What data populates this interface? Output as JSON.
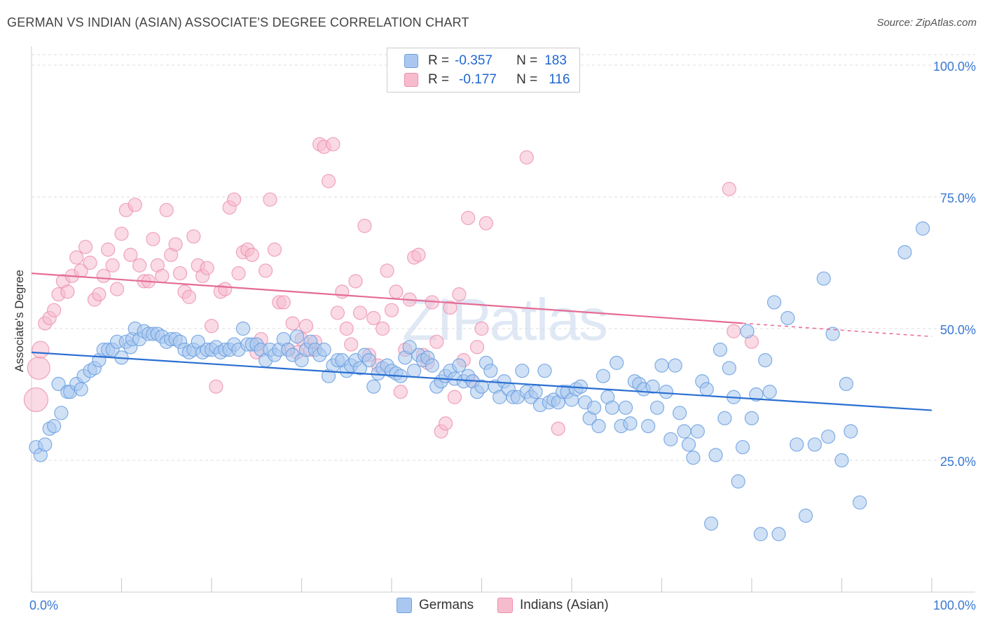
{
  "title": "GERMAN VS INDIAN (ASIAN) ASSOCIATE'S DEGREE CORRELATION CHART",
  "source": "Source: ZipAtlas.com",
  "watermark": "ZIPatlas",
  "legend": {
    "rows": [
      {
        "r_label": "R =",
        "r_value": "-0.357",
        "n_label": "N =",
        "n_value": "183"
      },
      {
        "r_label": "R =",
        "r_value": "-0.177",
        "n_label": "N =",
        "n_value": "116"
      }
    ]
  },
  "bottom_legend": {
    "series1": "Germans",
    "series2": "Indians (Asian)"
  },
  "colors": {
    "blue_fill": "#aac8ef",
    "blue_stroke": "#6b9fe0",
    "blue_line": "#2a6fd1",
    "pink_fill": "#f6bccd",
    "pink_stroke": "#ee8fae",
    "pink_line": "#e56b95",
    "axis_text": "#3a78d4"
  },
  "chart_data": {
    "type": "scatter",
    "title": "GERMAN VS INDIAN (ASIAN) ASSOCIATE'S DEGREE CORRELATION CHART",
    "xlabel": "",
    "ylabel": "Associate's Degree",
    "xlim": [
      0,
      100
    ],
    "ylim": [
      0,
      102
    ],
    "x_tick_labels": [
      "0.0%",
      "100.0%"
    ],
    "y_ticks": [
      25,
      50,
      75,
      100
    ],
    "y_tick_labels": [
      "25.0%",
      "50.0%",
      "75.0%",
      "100.0%"
    ],
    "grid": true,
    "series": [
      {
        "name": "Germans",
        "r": -0.357,
        "n": 183,
        "trend": {
          "x0": 0,
          "y0": 45.5,
          "x1": 100,
          "y1": 34.5,
          "dash_from": null
        },
        "points": [
          [
            0.5,
            27.5
          ],
          [
            1,
            26
          ],
          [
            1.5,
            28
          ],
          [
            2,
            31
          ],
          [
            2.5,
            31.5
          ],
          [
            3.3,
            34
          ],
          [
            3,
            39.5
          ],
          [
            4,
            38
          ],
          [
            4.3,
            38
          ],
          [
            5,
            39.5
          ],
          [
            5.5,
            38.5
          ],
          [
            5.8,
            41
          ],
          [
            6.5,
            42
          ],
          [
            7,
            42.5
          ],
          [
            7.5,
            44
          ],
          [
            8,
            46
          ],
          [
            8.5,
            46
          ],
          [
            9,
            46
          ],
          [
            9.5,
            47.5
          ],
          [
            10,
            44.5
          ],
          [
            10.5,
            47.5
          ],
          [
            11,
            46.5
          ],
          [
            11.2,
            48
          ],
          [
            11.5,
            50
          ],
          [
            12,
            48
          ],
          [
            12.5,
            49.5
          ],
          [
            13,
            49
          ],
          [
            13.5,
            49
          ],
          [
            14,
            49
          ],
          [
            14.5,
            48.5
          ],
          [
            15,
            47.5
          ],
          [
            15.5,
            48
          ],
          [
            16,
            48
          ],
          [
            16.5,
            47.5
          ],
          [
            17,
            46
          ],
          [
            17.5,
            45.5
          ],
          [
            18,
            46
          ],
          [
            18.5,
            47.5
          ],
          [
            19,
            45.5
          ],
          [
            19.5,
            46
          ],
          [
            20,
            46
          ],
          [
            20.5,
            46.5
          ],
          [
            21,
            45.5
          ],
          [
            21.5,
            46
          ],
          [
            22,
            46
          ],
          [
            22.5,
            47
          ],
          [
            23,
            46
          ],
          [
            23.5,
            50
          ],
          [
            24,
            47
          ],
          [
            24.5,
            47
          ],
          [
            25,
            47
          ],
          [
            25.5,
            46
          ],
          [
            26,
            44
          ],
          [
            26.5,
            46
          ],
          [
            27,
            45
          ],
          [
            27.5,
            46
          ],
          [
            28,
            48
          ],
          [
            28.5,
            46
          ],
          [
            29,
            45
          ],
          [
            29.5,
            48.5
          ],
          [
            30,
            44
          ],
          [
            30.5,
            46
          ],
          [
            31,
            47.5
          ],
          [
            31.5,
            46
          ],
          [
            32,
            45
          ],
          [
            32.5,
            46
          ],
          [
            33,
            41
          ],
          [
            33.5,
            43
          ],
          [
            34,
            44
          ],
          [
            34.5,
            44
          ],
          [
            35,
            42
          ],
          [
            35.5,
            43
          ],
          [
            36,
            44
          ],
          [
            36.5,
            42.5
          ],
          [
            37,
            45
          ],
          [
            37.5,
            44
          ],
          [
            38,
            39
          ],
          [
            38.5,
            41.5
          ],
          [
            39,
            42.5
          ],
          [
            39.5,
            43
          ],
          [
            40,
            42
          ],
          [
            40.5,
            41.5
          ],
          [
            41,
            41
          ],
          [
            41.5,
            44.5
          ],
          [
            42,
            46.5
          ],
          [
            42.5,
            42
          ],
          [
            43,
            45
          ],
          [
            43.5,
            44
          ],
          [
            44,
            44.5
          ],
          [
            44.5,
            43
          ],
          [
            45,
            39
          ],
          [
            45.5,
            40
          ],
          [
            46,
            41
          ],
          [
            46.5,
            42
          ],
          [
            47,
            40.5
          ],
          [
            47.5,
            43
          ],
          [
            48,
            40
          ],
          [
            48.5,
            41
          ],
          [
            49,
            40
          ],
          [
            49.5,
            38
          ],
          [
            50,
            39
          ],
          [
            50.5,
            43.5
          ],
          [
            51,
            42
          ],
          [
            51.5,
            39
          ],
          [
            52,
            37
          ],
          [
            52.5,
            40
          ],
          [
            53,
            38.5
          ],
          [
            53.5,
            37
          ],
          [
            54,
            37
          ],
          [
            54.5,
            42
          ],
          [
            55,
            38
          ],
          [
            55.5,
            37
          ],
          [
            56,
            38
          ],
          [
            56.5,
            35.5
          ],
          [
            57,
            42
          ],
          [
            57.5,
            36
          ],
          [
            58,
            36.5
          ],
          [
            58.5,
            36
          ],
          [
            59,
            38
          ],
          [
            59.5,
            38
          ],
          [
            60,
            36.5
          ],
          [
            60.5,
            38.5
          ],
          [
            61,
            39
          ],
          [
            61.5,
            36
          ],
          [
            62,
            33
          ],
          [
            62.5,
            35
          ],
          [
            63,
            31.5
          ],
          [
            63.5,
            41
          ],
          [
            64,
            37
          ],
          [
            64.5,
            35
          ],
          [
            65,
            43.5
          ],
          [
            65.5,
            31.5
          ],
          [
            66,
            35
          ],
          [
            66.5,
            32
          ],
          [
            67,
            40
          ],
          [
            67.5,
            39.5
          ],
          [
            68,
            38.5
          ],
          [
            68.5,
            31.5
          ],
          [
            69,
            39
          ],
          [
            69.5,
            35
          ],
          [
            70,
            43
          ],
          [
            70.5,
            38
          ],
          [
            71,
            29
          ],
          [
            71.5,
            43
          ],
          [
            72,
            34
          ],
          [
            72.5,
            30.5
          ],
          [
            73,
            28
          ],
          [
            73.5,
            25.5
          ],
          [
            74,
            30.5
          ],
          [
            74.5,
            40
          ],
          [
            75,
            38.5
          ],
          [
            75.5,
            13
          ],
          [
            76,
            26
          ],
          [
            76.5,
            46
          ],
          [
            77,
            33
          ],
          [
            77.5,
            42.5
          ],
          [
            78,
            37
          ],
          [
            78.5,
            21
          ],
          [
            79,
            27.5
          ],
          [
            79.5,
            49.5
          ],
          [
            80,
            33
          ],
          [
            80.5,
            37.5
          ],
          [
            81,
            11
          ],
          [
            81.5,
            44
          ],
          [
            82,
            38
          ],
          [
            82.5,
            55
          ],
          [
            83,
            11
          ],
          [
            84,
            52
          ],
          [
            85,
            28
          ],
          [
            86,
            14.5
          ],
          [
            87,
            28
          ],
          [
            88,
            59.5
          ],
          [
            88.5,
            29.5
          ],
          [
            89,
            49
          ],
          [
            90,
            25
          ],
          [
            90.5,
            39.5
          ],
          [
            91,
            30.5
          ],
          [
            92,
            17
          ],
          [
            97,
            64.5
          ],
          [
            99,
            69
          ]
        ]
      },
      {
        "name": "Indians (Asian)",
        "r": -0.177,
        "n": 116,
        "trend": {
          "x0": 0,
          "y0": 60.5,
          "x1": 100,
          "y1": 48.5,
          "dash_from": 79
        },
        "points": [
          [
            0.5,
            36.5
          ],
          [
            0.8,
            42.5
          ],
          [
            1,
            46
          ],
          [
            1.5,
            51
          ],
          [
            2,
            52
          ],
          [
            2.5,
            53.5
          ],
          [
            3,
            56.5
          ],
          [
            3.5,
            59
          ],
          [
            4,
            57
          ],
          [
            4.5,
            60
          ],
          [
            5,
            63.5
          ],
          [
            5.5,
            61
          ],
          [
            6,
            65.5
          ],
          [
            6.5,
            62.5
          ],
          [
            7,
            55.5
          ],
          [
            7.5,
            56.5
          ],
          [
            8,
            60
          ],
          [
            8.5,
            65
          ],
          [
            9,
            62
          ],
          [
            9.5,
            57.5
          ],
          [
            10,
            68
          ],
          [
            10.5,
            72.5
          ],
          [
            11,
            64
          ],
          [
            11.5,
            73.5
          ],
          [
            12,
            62
          ],
          [
            12.5,
            59
          ],
          [
            13,
            59
          ],
          [
            13.5,
            67
          ],
          [
            14,
            62
          ],
          [
            14.5,
            60
          ],
          [
            15,
            72.5
          ],
          [
            15.5,
            64
          ],
          [
            16,
            66
          ],
          [
            16.5,
            60.5
          ],
          [
            17,
            57
          ],
          [
            17.5,
            56
          ],
          [
            18,
            67.5
          ],
          [
            18.5,
            62
          ],
          [
            19,
            60
          ],
          [
            19.5,
            61.5
          ],
          [
            20,
            50.5
          ],
          [
            20.5,
            39
          ],
          [
            21,
            57
          ],
          [
            21.5,
            57.5
          ],
          [
            22,
            73
          ],
          [
            22.5,
            74.5
          ],
          [
            23,
            60.5
          ],
          [
            23.5,
            64.5
          ],
          [
            24,
            65
          ],
          [
            24.5,
            64
          ],
          [
            25,
            45.5
          ],
          [
            25.5,
            48
          ],
          [
            26,
            61
          ],
          [
            26.5,
            74.5
          ],
          [
            27,
            65
          ],
          [
            27.5,
            55
          ],
          [
            28,
            55
          ],
          [
            28.5,
            46
          ],
          [
            29,
            51
          ],
          [
            29.5,
            45.5
          ],
          [
            30,
            48
          ],
          [
            30.5,
            50.5
          ],
          [
            31,
            46
          ],
          [
            31.5,
            47.5
          ],
          [
            32,
            85
          ],
          [
            32.5,
            84.5
          ],
          [
            33,
            78
          ],
          [
            33.5,
            85
          ],
          [
            34,
            53
          ],
          [
            34.5,
            57
          ],
          [
            35,
            50
          ],
          [
            35.5,
            47
          ],
          [
            36,
            59
          ],
          [
            36.5,
            53
          ],
          [
            37,
            69.5
          ],
          [
            37.5,
            45
          ],
          [
            38,
            52
          ],
          [
            38.5,
            43
          ],
          [
            39,
            50
          ],
          [
            39.5,
            61
          ],
          [
            40,
            53.5
          ],
          [
            40.5,
            57
          ],
          [
            41,
            38
          ],
          [
            41.5,
            46
          ],
          [
            42,
            55.5
          ],
          [
            42.5,
            63.5
          ],
          [
            43,
            64
          ],
          [
            43.5,
            45
          ],
          [
            44,
            43.5
          ],
          [
            44.5,
            55
          ],
          [
            45,
            47.5
          ],
          [
            45.5,
            30.5
          ],
          [
            46,
            32
          ],
          [
            46.5,
            54
          ],
          [
            47,
            37
          ],
          [
            47.5,
            56.5
          ],
          [
            48,
            44
          ],
          [
            48.5,
            71
          ],
          [
            49,
            40
          ],
          [
            49.5,
            46.5
          ],
          [
            50,
            50
          ],
          [
            50.5,
            70
          ],
          [
            55,
            82.5
          ],
          [
            58.5,
            31
          ],
          [
            77.5,
            76.5
          ],
          [
            78,
            49.5
          ],
          [
            80,
            47.5
          ]
        ]
      }
    ]
  }
}
